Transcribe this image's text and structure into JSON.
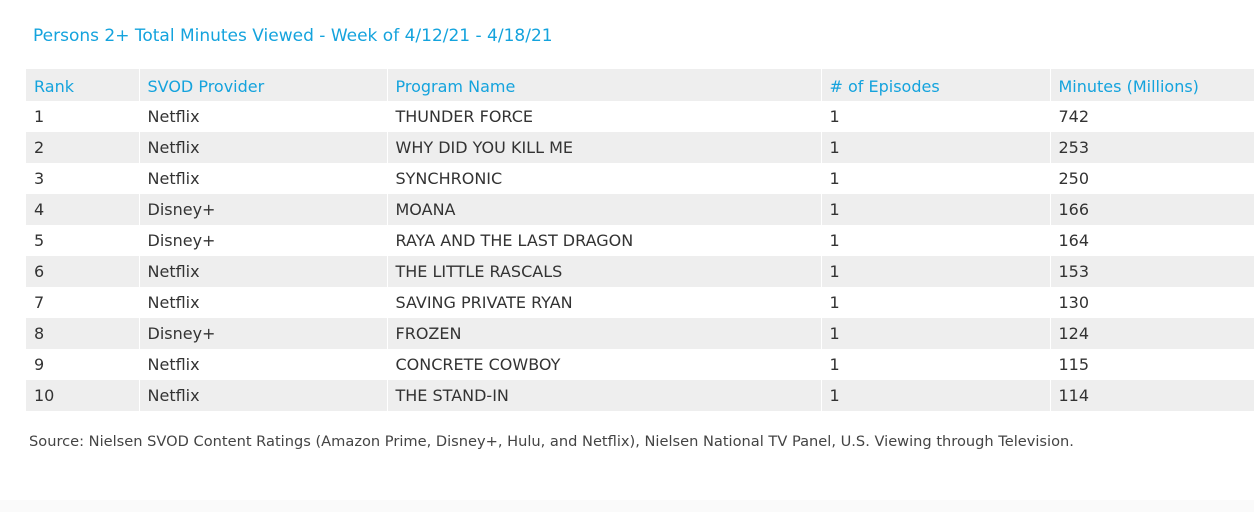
{
  "chart_data": {
    "type": "table",
    "title": "Persons 2+ Total Minutes Viewed - Week of 4/12/21 - 4/18/21",
    "columns": [
      "Rank",
      "SVOD Provider",
      "Program Name",
      "# of Episodes",
      "Minutes (Millions)"
    ],
    "rows": [
      [
        "1",
        "Netflix",
        "THUNDER FORCE",
        "1",
        "742"
      ],
      [
        "2",
        "Netflix",
        "WHY DID YOU KILL ME",
        "1",
        "253"
      ],
      [
        "3",
        "Netflix",
        "SYNCHRONIC",
        "1",
        "250"
      ],
      [
        "4",
        "Disney+",
        "MOANA",
        "1",
        "166"
      ],
      [
        "5",
        "Disney+",
        "RAYA AND THE LAST DRAGON",
        "1",
        "164"
      ],
      [
        "6",
        "Netflix",
        "THE LITTLE RASCALS",
        "1",
        "153"
      ],
      [
        "7",
        "Netflix",
        "SAVING PRIVATE RYAN",
        "1",
        "130"
      ],
      [
        "8",
        "Disney+",
        "FROZEN",
        "1",
        "124"
      ],
      [
        "9",
        "Netflix",
        "CONCRETE COWBOY",
        "1",
        "115"
      ],
      [
        "10",
        "Netflix",
        "THE STAND-IN",
        "1",
        "114"
      ]
    ],
    "source": "Source: Nielsen SVOD Content Ratings (Amazon Prime, Disney+, Hulu, and Netflix), Nielsen National TV Panel, U.S. Viewing through Television."
  },
  "colors": {
    "accent": "#14a3dd",
    "stripe": "#eeeeee",
    "text": "#333333"
  }
}
